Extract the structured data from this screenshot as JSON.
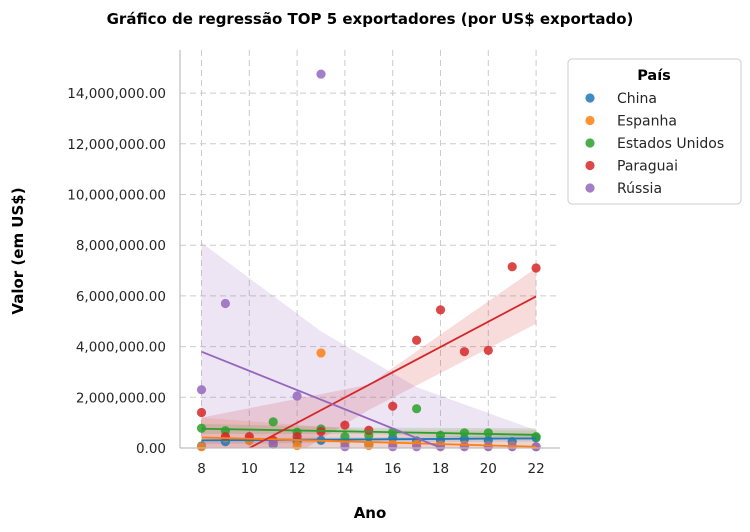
{
  "chart_data": {
    "type": "scatter",
    "title": "Gráfico de regressão TOP 5 exportadores (por US$ exportado)",
    "xlabel": "Ano",
    "ylabel": "Valor (em US$)",
    "xlim": [
      7.1,
      23.0
    ],
    "ylim": [
      0,
      15700000
    ],
    "xticks": [
      8,
      10,
      12,
      14,
      16,
      18,
      20,
      22
    ],
    "xtick_labels": [
      "8",
      "10",
      "12",
      "14",
      "16",
      "18",
      "20",
      "22"
    ],
    "yticks": [
      0,
      2000000,
      4000000,
      6000000,
      8000000,
      10000000,
      12000000,
      14000000
    ],
    "ytick_labels": [
      "0.00",
      "2,000,000.00",
      "4,000,000.00",
      "6,000,000.00",
      "8,000,000.00",
      "10,000,000.00",
      "12,000,000.00",
      "14,000,000.00"
    ],
    "grid": true,
    "legend_title": "País",
    "legend_position": "outside-top-right",
    "series": [
      {
        "name": "China",
        "color": "#1f77b4",
        "x": [
          8,
          9,
          10,
          11,
          12,
          13,
          14,
          15,
          16,
          17,
          18,
          19,
          20,
          21,
          22
        ],
        "y": [
          80000,
          250000,
          300000,
          150000,
          250000,
          300000,
          200000,
          150000,
          400000,
          280000,
          300000,
          350000,
          300000,
          250000,
          400000
        ],
        "fit": [
          [
            8,
            300000
          ],
          [
            22,
            380000
          ]
        ],
        "band_upper": [
          [
            8,
            380000
          ],
          [
            15,
            420000
          ],
          [
            22,
            520000
          ]
        ],
        "band_lower": [
          [
            8,
            150000
          ],
          [
            15,
            230000
          ],
          [
            22,
            250000
          ]
        ]
      },
      {
        "name": "Espanha",
        "color": "#ff7f0e",
        "x": [
          8,
          9,
          10,
          11,
          12,
          13,
          14,
          15,
          16,
          17,
          18,
          19,
          20,
          21,
          22
        ],
        "y": [
          50000,
          400000,
          300000,
          200000,
          100000,
          3750000,
          200000,
          100000,
          150000,
          150000,
          100000,
          100000,
          80000,
          80000,
          50000
        ],
        "fit": [
          [
            8,
            420000
          ],
          [
            22,
            50000
          ]
        ],
        "band_upper": [
          [
            8,
            1200000
          ],
          [
            15,
            700000
          ],
          [
            22,
            700000
          ]
        ],
        "band_lower": [
          [
            8,
            0
          ],
          [
            15,
            0
          ],
          [
            22,
            0
          ]
        ]
      },
      {
        "name": "Estados Unidos",
        "color": "#2ca02c",
        "x": [
          8,
          9,
          11,
          12,
          13,
          14,
          15,
          16,
          17,
          18,
          19,
          20,
          22
        ],
        "y": [
          780000,
          680000,
          1030000,
          620000,
          750000,
          450000,
          500000,
          620000,
          1550000,
          500000,
          600000,
          600000,
          450000
        ],
        "fit": [
          [
            8,
            760000
          ],
          [
            22,
            520000
          ]
        ],
        "band_upper": [
          [
            8,
            950000
          ],
          [
            15,
            800000
          ],
          [
            22,
            780000
          ]
        ],
        "band_lower": [
          [
            8,
            550000
          ],
          [
            15,
            550000
          ],
          [
            22,
            300000
          ]
        ]
      },
      {
        "name": "Paraguai",
        "color": "#d62728",
        "x": [
          8,
          9,
          10,
          11,
          12,
          13,
          14,
          15,
          16,
          17,
          18,
          19,
          20,
          21,
          22
        ],
        "y": [
          1400000,
          450000,
          450000,
          300000,
          450000,
          650000,
          900000,
          700000,
          1650000,
          4250000,
          5450000,
          3800000,
          3850000,
          7150000,
          7100000
        ],
        "fit": [
          [
            8,
            -1000000
          ],
          [
            22,
            5980000
          ]
        ],
        "band_upper": [
          [
            8,
            1200000
          ],
          [
            15,
            2500000
          ],
          [
            22,
            7100000
          ]
        ],
        "band_lower": [
          [
            8,
            -2500000
          ],
          [
            15,
            1500000
          ],
          [
            22,
            4900000
          ]
        ]
      },
      {
        "name": "Rússia",
        "color": "#9467bd",
        "x": [
          8,
          9,
          11,
          12,
          13,
          14,
          16,
          17,
          18,
          19,
          20,
          21,
          22
        ],
        "y": [
          2300000,
          5700000,
          200000,
          2050000,
          14750000,
          50000,
          50000,
          50000,
          50000,
          50000,
          50000,
          50000,
          50000
        ],
        "fit": [
          [
            8,
            3800000
          ],
          [
            22,
            -1500000
          ]
        ],
        "band_upper": [
          [
            8,
            8100000
          ],
          [
            13,
            4600000
          ],
          [
            17,
            2400000
          ],
          [
            22,
            700000
          ]
        ],
        "band_lower": [
          [
            8,
            0
          ],
          [
            22,
            -4000000
          ]
        ]
      }
    ]
  }
}
